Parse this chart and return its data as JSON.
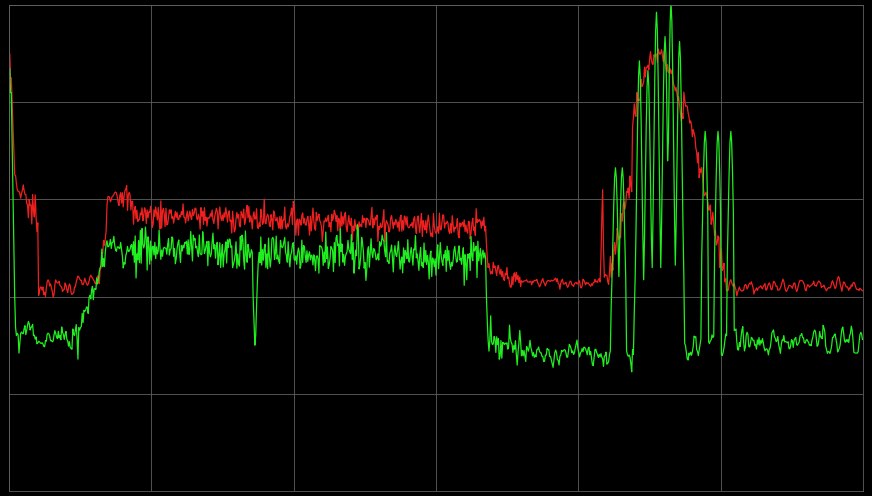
{
  "background_color": "#000000",
  "grid_color": "#606060",
  "red_color": "#ee2020",
  "green_color": "#20ee20",
  "fig_width": 8.72,
  "fig_height": 4.96,
  "dpi": 100,
  "n_points": 1000,
  "xlim": [
    0,
    1000
  ],
  "ylim": [
    0,
    1000
  ],
  "grid_nx": 7,
  "grid_ny": 6
}
